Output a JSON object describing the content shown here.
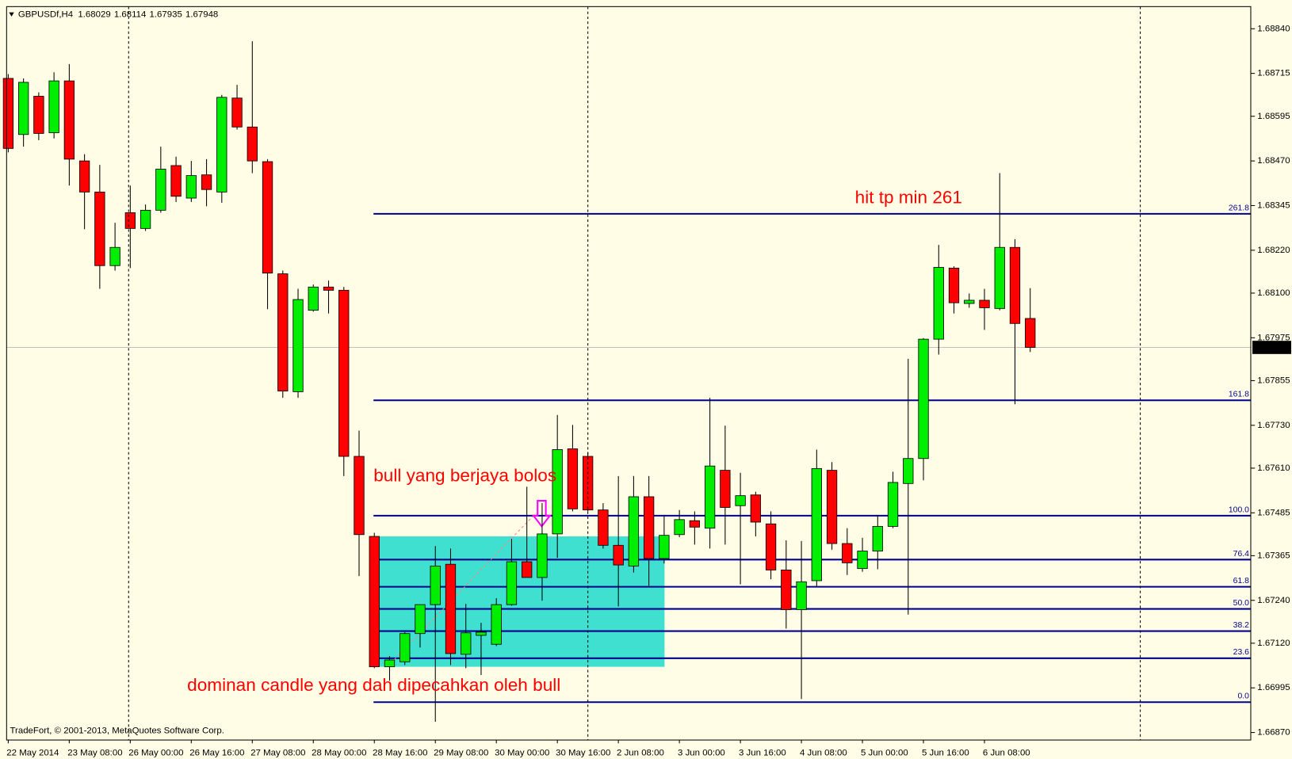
{
  "chart_data": {
    "type": "candlestick",
    "title": "GBPUSDf,H4",
    "copyright": "TradeFort, © 2001-2013, MetaQuotes Software Corp.",
    "annotations": [
      "hit tp min 261",
      "bull yang berjaya bolos",
      "dominan candle yang dah dipecahkan oleh bull"
    ],
    "categories": [
      "22 May 2014",
      null,
      null,
      null,
      "23 May 08:00",
      null,
      null,
      null,
      "26 May 00:00",
      null,
      null,
      null,
      "26 May 16:00",
      null,
      null,
      null,
      "27 May 08:00",
      null,
      null,
      null,
      "28 May 00:00",
      null,
      null,
      null,
      "28 May 16:00",
      null,
      null,
      null,
      "29 May 08:00",
      null,
      null,
      null,
      "30 May 00:00",
      null,
      null,
      null,
      "30 May 16:00",
      null,
      null,
      null,
      "2 Jun 08:00",
      null,
      null,
      null,
      "3 Jun 00:00",
      null,
      null,
      null,
      "3 Jun 16:00",
      null,
      null,
      null,
      "4 Jun 08:00",
      null,
      null,
      null,
      "5 Jun 00:00",
      null,
      null,
      null,
      "5 Jun 16:00",
      null,
      null,
      null,
      "6 Jun 08:00",
      null,
      null,
      null
    ],
    "open": [
      1.68701,
      1.68544,
      1.68651,
      1.68549,
      1.68694,
      1.6847,
      1.68383,
      1.68177,
      1.68325,
      1.68281,
      1.68332,
      1.68457,
      1.68366,
      1.68431,
      1.68383,
      1.68646,
      1.68565,
      1.68468,
      1.68154,
      1.67824,
      1.68052,
      1.68117,
      1.68108,
      1.67643,
      1.67419,
      1.67054,
      1.67068,
      1.67147,
      1.67228,
      1.67341,
      1.67089,
      1.67142,
      1.67117,
      1.67228,
      1.67348,
      1.67304,
      1.67426,
      1.67664,
      1.67643,
      1.67493,
      1.67394,
      1.67336,
      1.6753,
      1.67357,
      1.67424,
      1.67463,
      1.67442,
      1.67604,
      1.67505,
      1.67535,
      1.67454,
      1.67325,
      1.67214,
      1.67295,
      1.67604,
      1.67399,
      1.67329,
      1.67378,
      1.67447,
      1.67567,
      1.67637,
      1.67971,
      1.6817,
      1.68071,
      1.6808,
      1.68057,
      1.68228,
      1.68029
    ],
    "high": [
      1.68713,
      1.68701,
      1.68662,
      1.68718,
      1.68741,
      1.68489,
      1.68459,
      1.68297,
      1.68401,
      1.68348,
      1.6851,
      1.68482,
      1.6847,
      1.68475,
      1.68655,
      1.68683,
      1.68805,
      1.68475,
      1.68163,
      1.68112,
      1.68124,
      1.68135,
      1.68117,
      1.67715,
      1.67429,
      1.67084,
      1.67151,
      1.67228,
      1.67392,
      1.67385,
      1.6723,
      1.67177,
      1.67246,
      1.67412,
      1.67558,
      1.67512,
      1.67759,
      1.67731,
      1.67655,
      1.67512,
      1.67588,
      1.67588,
      1.67588,
      1.67475,
      1.67493,
      1.67489,
      1.67807,
      1.67729,
      1.67597,
      1.67544,
      1.67489,
      1.67408,
      1.67406,
      1.67662,
      1.67627,
      1.67442,
      1.67415,
      1.67479,
      1.676,
      1.67916,
      1.67974,
      1.68235,
      1.68175,
      1.68099,
      1.68112,
      1.68436,
      1.68251,
      1.68114
    ],
    "low": [
      1.68494,
      1.6851,
      1.68528,
      1.68533,
      1.68401,
      1.68279,
      1.68112,
      1.68163,
      1.6817,
      1.68274,
      1.68325,
      1.68355,
      1.68355,
      1.68343,
      1.68353,
      1.68558,
      1.68436,
      1.68055,
      1.67807,
      1.67807,
      1.68048,
      1.68043,
      1.67588,
      1.67308,
      1.6705,
      1.67015,
      1.67059,
      1.67108,
      1.669,
      1.67059,
      1.6705,
      1.67031,
      1.67112,
      1.67225,
      1.67304,
      1.67239,
      1.67359,
      1.67489,
      1.67489,
      1.67385,
      1.67223,
      1.67318,
      1.67281,
      1.67343,
      1.67417,
      1.67396,
      1.67385,
      1.67396,
      1.67285,
      1.67419,
      1.67299,
      1.67161,
      1.66964,
      1.67276,
      1.67382,
      1.67311,
      1.6732,
      1.67327,
      1.67442,
      1.672,
      1.67576,
      1.67928,
      1.68043,
      1.68059,
      1.67997,
      1.68052,
      1.67789,
      1.67935
    ],
    "close": [
      1.68505,
      1.6869,
      1.68547,
      1.68694,
      1.68475,
      1.68383,
      1.68177,
      1.68228,
      1.68281,
      1.68332,
      1.68447,
      1.68371,
      1.68429,
      1.6839,
      1.68648,
      1.68565,
      1.6847,
      1.68156,
      1.67826,
      1.68082,
      1.68117,
      1.68108,
      1.67643,
      1.67424,
      1.67054,
      1.67073,
      1.67147,
      1.67228,
      1.67336,
      1.67091,
      1.67149,
      1.67151,
      1.67228,
      1.67348,
      1.67304,
      1.67426,
      1.67662,
      1.67496,
      1.67493,
      1.67394,
      1.67339,
      1.6753,
      1.67357,
      1.67422,
      1.67466,
      1.67445,
      1.67616,
      1.675,
      1.67533,
      1.67459,
      1.67325,
      1.67214,
      1.67292,
      1.67609,
      1.67399,
      1.67345,
      1.67378,
      1.67447,
      1.6757,
      1.67637,
      1.67971,
      1.68172,
      1.68073,
      1.6808,
      1.68059,
      1.68228,
      1.68015,
      1.67948
    ],
    "up_color": "#00ee00",
    "down_color": "#ff0000",
    "fib_color": "#00008b",
    "fib_levels": [
      {
        "label": "261.8",
        "price": 1.68322
      },
      {
        "label": "161.8",
        "price": 1.678
      },
      {
        "label": "100.0",
        "price": 1.67477
      },
      {
        "label": "76.4",
        "price": 1.67354
      },
      {
        "label": "61.8",
        "price": 1.67278
      },
      {
        "label": "50.0",
        "price": 1.67216
      },
      {
        "label": "38.2",
        "price": 1.67154
      },
      {
        "label": "23.6",
        "price": 1.67078
      },
      {
        "label": "0.0",
        "price": 1.66955
      }
    ],
    "zone_price_range": [
      1.67054,
      1.67419
    ],
    "zone_color": "#40e0d0",
    "ylim": [
      1.66849,
      1.68902
    ],
    "yticks": [
      {
        "value": 1.6884,
        "label": "1.68840"
      },
      1.68715,
      1.68595,
      {
        "value": 1.6847,
        "label": "1.68470"
      },
      1.68345,
      {
        "value": 1.6822,
        "label": "1.68220"
      },
      {
        "value": 1.681,
        "label": "1.68100"
      },
      1.67975,
      1.67855,
      {
        "value": 1.6773,
        "label": "1.67730"
      },
      {
        "value": 1.6761,
        "label": "1.67610"
      },
      1.67485,
      1.67365,
      {
        "value": 1.6724,
        "label": "1.67240"
      },
      {
        "value": 1.6712,
        "label": "1.67120"
      },
      1.66995,
      {
        "value": 1.6687,
        "label": "1.66870"
      }
    ]
  }
}
